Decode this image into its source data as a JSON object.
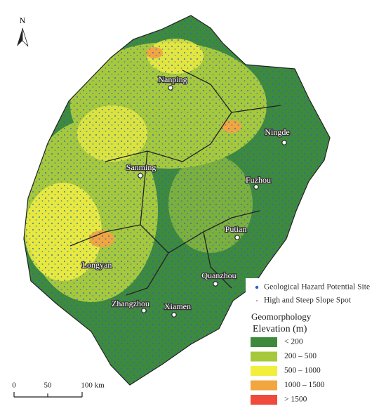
{
  "north": "N",
  "cities": [
    {
      "label": "Nanping"
    },
    {
      "label": "Ningde"
    },
    {
      "label": "Sanming"
    },
    {
      "label": "Fuzhou"
    },
    {
      "label": "Putian"
    },
    {
      "label": "Longyan"
    },
    {
      "label": "Quanzhou"
    },
    {
      "label": "Zhangzhou"
    },
    {
      "label": "Xiamen"
    }
  ],
  "legend": {
    "markers": [
      {
        "label": "Geological Hazard Potential Site",
        "color": "#2a5fd0"
      },
      {
        "label": "High and Steep Slope Spot",
        "color": "#c8a0a0"
      }
    ],
    "title": "Geomorphology",
    "subtitle": "Elevation (m)",
    "classes": [
      {
        "label": "< 200",
        "color": "#3e8a3c"
      },
      {
        "label": "200 – 500",
        "color": "#a6c93c"
      },
      {
        "label": "500 – 1000",
        "color": "#f2ee3e"
      },
      {
        "label": "1000 – 1500",
        "color": "#f2a640"
      },
      {
        "label": "> 1500",
        "color": "#f04a3c"
      }
    ]
  },
  "scale_bar": {
    "labels": [
      "0",
      "50",
      "100 km"
    ]
  }
}
